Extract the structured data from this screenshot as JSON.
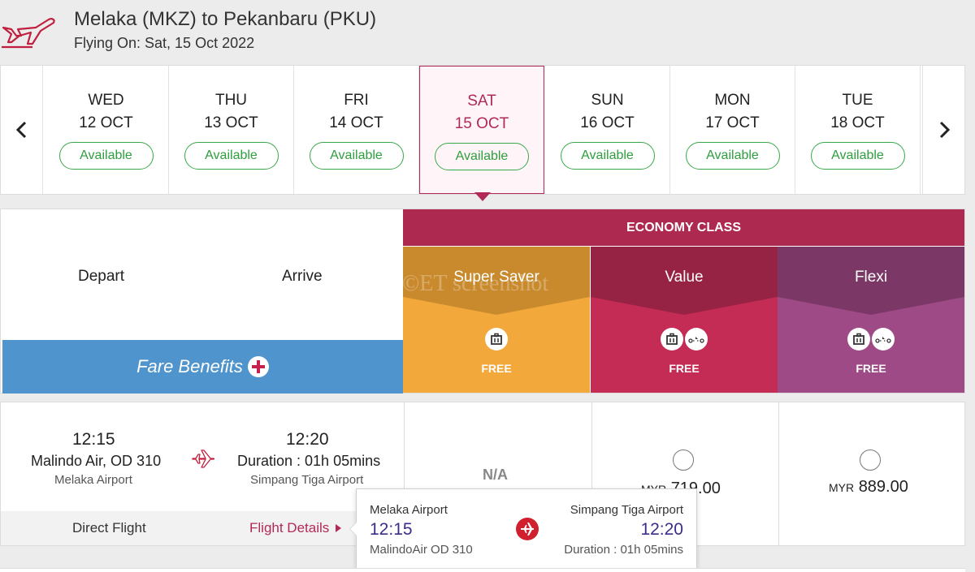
{
  "header": {
    "route": "Melaka (MKZ) to Pekanbaru (PKU)",
    "flying_on": "Flying On: Sat, 15 Oct 2022"
  },
  "dates": [
    {
      "day": "WED",
      "date": "12 OCT",
      "status": "Available"
    },
    {
      "day": "THU",
      "date": "13 OCT",
      "status": "Available"
    },
    {
      "day": "FRI",
      "date": "14 OCT",
      "status": "Available"
    },
    {
      "day": "SAT",
      "date": "15 OCT",
      "status": "Available"
    },
    {
      "day": "SUN",
      "date": "16 OCT",
      "status": "Available"
    },
    {
      "day": "MON",
      "date": "17 OCT",
      "status": "Available"
    },
    {
      "day": "TUE",
      "date": "18 OCT",
      "status": "Available"
    }
  ],
  "fare_table": {
    "depart_label": "Depart",
    "arrive_label": "Arrive",
    "fare_benefits": "Fare Benefits",
    "class_label": "ECONOMY CLASS",
    "fares": [
      {
        "name": "Super Saver",
        "free": "FREE",
        "icons": [
          "baggage-icon"
        ]
      },
      {
        "name": "Value",
        "free": "FREE",
        "icons": [
          "baggage-icon",
          "seat-select-icon"
        ]
      },
      {
        "name": "Flexi",
        "free": "FREE",
        "icons": [
          "baggage-icon",
          "seat-select-icon"
        ]
      }
    ],
    "watermark": "©ET screenshot"
  },
  "flight": {
    "depart_time": "12:15",
    "flight_no": "Malindo Air, OD 310",
    "depart_airport": "Melaka Airport",
    "arrive_time": "12:20",
    "duration": "Duration : 01h 05mins",
    "arrive_airport": "Simpang Tiga Airport",
    "direct": "Direct Flight",
    "details_link": "Flight Details",
    "super_saver_price": "N/A",
    "value_currency": "MYR",
    "value_price": "719.00",
    "flexi_currency": "MYR",
    "flexi_price": "889.00"
  },
  "tooltip": {
    "from_airport": "Melaka Airport",
    "from_time": "12:15",
    "carrier": "MalindoAir OD 310",
    "to_airport": "Simpang Tiga Airport",
    "to_time": "12:20",
    "duration": "Duration : 01h 05mins"
  },
  "colors": {
    "brand": "#b02a55",
    "available": "#2e9e3e",
    "super_saver": "#f2a83b",
    "value": "#c42c55",
    "flexi": "#9d4a86",
    "benefits": "#4f94cc"
  }
}
